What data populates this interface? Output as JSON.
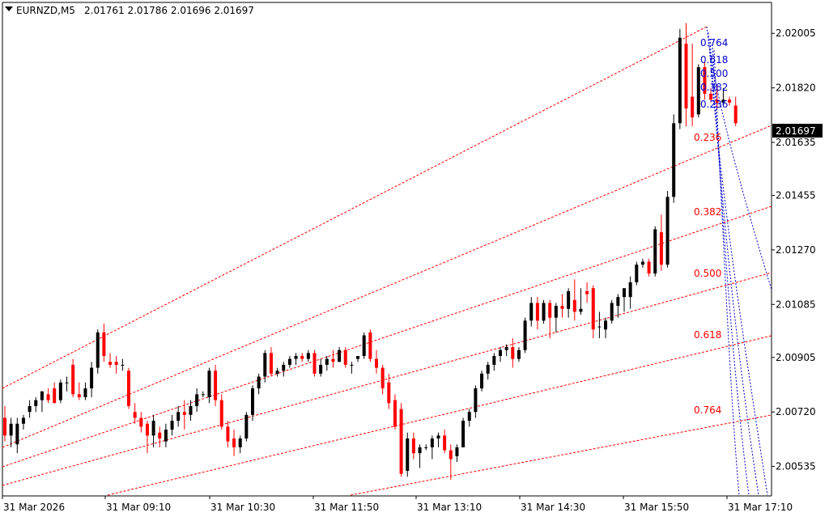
{
  "header": {
    "symbol": "EURNZD,M5",
    "ohlc": "2.01761 2.01786 2.01696 2.01697"
  },
  "colors": {
    "background": "#ffffff",
    "bull_body": "#000000",
    "bear_body": "#ff0000",
    "doji": "#00c000",
    "fan_lines": "#ff0000",
    "fib_lines": "#0000cc",
    "price_tag_bg": "#000000"
  },
  "chart_data": {
    "type": "candlestick",
    "symbol": "EURNZD",
    "timeframe": "M5",
    "ylim": [
      2.00435,
      2.0211
    ],
    "y_ticks": [
      "2.02005",
      "2.01820",
      "2.01635",
      "2.01455",
      "2.01270",
      "2.01085",
      "2.00905",
      "2.00720",
      "2.00535"
    ],
    "x_ticks": [
      "31 Mar 2026",
      "31 Mar 09:10",
      "31 Mar 10:30",
      "31 Mar 11:50",
      "31 Mar 13:10",
      "31 Mar 14:30",
      "31 Mar 15:50",
      "31 Mar 17:10"
    ],
    "current_price": "2.01697",
    "gann_fan_labels": [
      "0.236",
      "0.382",
      "0.500",
      "0.618",
      "0.764"
    ],
    "fib_fan_labels": [
      "0.764",
      "0.618",
      "0.500",
      "0.382",
      "0.236"
    ],
    "candles": [
      [
        2.007,
        2.0074,
        2.0062,
        2.0064
      ],
      [
        2.0064,
        2.007,
        2.006,
        2.0068
      ],
      [
        2.0061,
        2.007,
        2.0058,
        2.0068
      ],
      [
        2.0068,
        2.0071,
        2.0066,
        2.007
      ],
      [
        2.0072,
        2.0076,
        2.007,
        2.0074
      ],
      [
        2.0074,
        2.0077,
        2.0072,
        2.0076
      ],
      [
        2.0076,
        2.0079,
        2.0072,
        2.0079
      ],
      [
        2.0078,
        2.008,
        2.0075,
        2.0076
      ],
      [
        2.008,
        2.0082,
        2.0075,
        2.0075
      ],
      [
        2.0076,
        2.0083,
        2.0075,
        2.0082
      ],
      [
        2.0082,
        2.0084,
        2.0079,
        2.0082
      ],
      [
        2.0088,
        2.009,
        2.0077,
        2.0078
      ],
      [
        2.0078,
        2.0082,
        2.0076,
        2.0077
      ],
      [
        2.0077,
        2.0082,
        2.0076,
        2.008
      ],
      [
        2.008,
        2.0089,
        2.0077,
        2.0087
      ],
      [
        2.0087,
        2.01,
        2.0085,
        2.0099
      ],
      [
        2.0099,
        2.0102,
        2.0089,
        2.0091
      ],
      [
        2.0089,
        2.0092,
        2.0087,
        2.0088
      ],
      [
        2.0089,
        2.0091,
        2.0085,
        2.0088
      ],
      [
        2.0088,
        2.009,
        2.0086,
        2.0088
      ],
      [
        2.0086,
        2.0087,
        2.0073,
        2.0074
      ],
      [
        2.0072,
        2.0075,
        2.0068,
        2.007
      ],
      [
        2.007,
        2.0072,
        2.0065,
        2.0067
      ],
      [
        2.0068,
        2.0069,
        2.0058,
        2.0064
      ],
      [
        2.0064,
        2.0071,
        2.006,
        2.0069
      ],
      [
        2.0065,
        2.0067,
        2.006,
        2.0063
      ],
      [
        2.0062,
        2.0068,
        2.006,
        2.0066
      ],
      [
        2.0066,
        2.0071,
        2.0064,
        2.0069
      ],
      [
        2.0069,
        2.0074,
        2.0067,
        2.0072
      ],
      [
        2.0072,
        2.0076,
        2.0066,
        2.0071
      ],
      [
        2.0071,
        2.0076,
        2.0069,
        2.0074
      ],
      [
        2.0074,
        2.008,
        2.0072,
        2.0078
      ],
      [
        2.0078,
        2.0079,
        2.0077,
        2.0078
      ],
      [
        2.0077,
        2.0087,
        2.0075,
        2.0086
      ],
      [
        2.0086,
        2.0088,
        2.0074,
        2.0076
      ],
      [
        2.0076,
        2.0078,
        2.0066,
        2.0067
      ],
      [
        2.0067,
        2.0069,
        2.006,
        2.0062
      ],
      [
        2.0063,
        2.0066,
        2.0057,
        2.006
      ],
      [
        2.006,
        2.0064,
        2.0058,
        2.0063
      ],
      [
        2.0063,
        2.0072,
        2.0062,
        2.0071
      ],
      [
        2.0071,
        2.0081,
        2.0069,
        2.008
      ],
      [
        2.008,
        2.0085,
        2.0078,
        2.0084
      ],
      [
        2.0084,
        2.0093,
        2.0082,
        2.0092
      ],
      [
        2.0092,
        2.0094,
        2.0084,
        2.0085
      ],
      [
        2.0085,
        2.0087,
        2.0084,
        2.0086
      ],
      [
        2.0086,
        2.0089,
        2.0084,
        2.0088
      ],
      [
        2.0088,
        2.0091,
        2.0087,
        2.009
      ],
      [
        2.009,
        2.0092,
        2.0088,
        2.0091
      ],
      [
        2.0091,
        2.0092,
        2.0089,
        2.009
      ],
      [
        2.009,
        2.0093,
        2.0089,
        2.0092
      ],
      [
        2.0092,
        2.0093,
        2.0084,
        2.0085
      ],
      [
        2.0085,
        2.009,
        2.0084,
        2.0088
      ],
      [
        2.0088,
        2.0091,
        2.0086,
        2.009
      ],
      [
        2.009,
        2.0093,
        2.0087,
        2.0089
      ],
      [
        2.0089,
        2.0094,
        2.0089,
        2.0093
      ],
      [
        2.0093,
        2.0094,
        2.0087,
        2.0088
      ],
      [
        2.0088,
        2.0089,
        2.0085,
        2.0088
      ],
      [
        2.009,
        2.0091,
        2.0089,
        2.0091
      ],
      [
        2.0091,
        2.0099,
        2.009,
        2.0098
      ],
      [
        2.0099,
        2.01,
        2.0089,
        2.009
      ],
      [
        2.009,
        2.0093,
        2.0085,
        2.0087
      ],
      [
        2.0087,
        2.0088,
        2.0078,
        2.008
      ],
      [
        2.0082,
        2.0085,
        2.0073,
        2.0075
      ],
      [
        2.0076,
        2.0078,
        2.0066,
        2.0067
      ],
      [
        2.0073,
        2.0075,
        2.005,
        2.0051
      ],
      [
        2.0052,
        2.0065,
        2.005,
        2.0063
      ],
      [
        2.0063,
        2.0065,
        2.0056,
        2.0058
      ],
      [
        2.0058,
        2.0061,
        2.0053,
        2.006
      ],
      [
        2.006,
        2.0061,
        2.0059,
        2.006
      ],
      [
        2.006,
        2.0064,
        2.0056,
        2.0063
      ],
      [
        2.0063,
        2.0065,
        2.006,
        2.0064
      ],
      [
        2.0064,
        2.0066,
        2.0058,
        2.0059
      ],
      [
        2.0059,
        2.0061,
        2.0049,
        2.0056
      ],
      [
        2.0057,
        2.0061,
        2.0055,
        2.006
      ],
      [
        2.006,
        2.007,
        2.006,
        2.0069
      ],
      [
        2.0069,
        2.0073,
        2.0067,
        2.0072
      ],
      [
        2.0072,
        2.0081,
        2.007,
        2.008
      ],
      [
        2.008,
        2.0086,
        2.0079,
        2.0085
      ],
      [
        2.0085,
        2.0089,
        2.0083,
        2.0088
      ],
      [
        2.0088,
        2.0092,
        2.0086,
        2.0091
      ],
      [
        2.0091,
        2.0094,
        2.0089,
        2.0093
      ],
      [
        2.0093,
        2.0095,
        2.0091,
        2.0094
      ],
      [
        2.0094,
        2.0097,
        2.0087,
        2.009
      ],
      [
        2.009,
        2.0094,
        2.0089,
        2.0093
      ],
      [
        2.0093,
        2.0104,
        2.0092,
        2.0103
      ],
      [
        2.0103,
        2.0111,
        2.0101,
        2.0109
      ],
      [
        2.0109,
        2.0111,
        2.01,
        2.0103
      ],
      [
        2.0103,
        2.011,
        2.0102,
        2.0109
      ],
      [
        2.0109,
        2.011,
        2.0097,
        2.0104
      ],
      [
        2.0104,
        2.0109,
        2.0099,
        2.0108
      ],
      [
        2.0108,
        2.0112,
        2.0104,
        2.0107
      ],
      [
        2.0107,
        2.0114,
        2.0104,
        2.0113
      ],
      [
        2.011,
        2.0117,
        2.0103,
        2.0106
      ],
      [
        2.0106,
        2.0114,
        2.0105,
        2.0107
      ],
      [
        2.0113,
        2.0116,
        2.0109,
        2.0112
      ],
      [
        2.0114,
        2.0115,
        2.0097,
        2.01
      ],
      [
        2.0101,
        2.0106,
        2.0097,
        2.0101
      ],
      [
        2.01,
        2.0104,
        2.0097,
        2.0103
      ],
      [
        2.0103,
        2.011,
        2.0102,
        2.0109
      ],
      [
        2.0108,
        2.0112,
        2.0104,
        2.0111
      ],
      [
        2.0111,
        2.0114,
        2.0106,
        2.0114
      ],
      [
        2.0111,
        2.0118,
        2.0107,
        2.0116
      ],
      [
        2.0116,
        2.0123,
        2.0115,
        2.0122
      ],
      [
        2.0122,
        2.0124,
        2.0121,
        2.0123
      ],
      [
        2.0123,
        2.0124,
        2.0118,
        2.0119
      ],
      [
        2.0119,
        2.0135,
        2.0118,
        2.0134
      ],
      [
        2.0133,
        2.0139,
        2.012,
        2.0122
      ],
      [
        2.0122,
        2.0147,
        2.0121,
        2.0145
      ],
      [
        2.0145,
        2.0173,
        2.0143,
        2.017
      ],
      [
        2.017,
        2.0202,
        2.0168,
        2.0199
      ],
      [
        2.0197,
        2.0204,
        2.0169,
        2.0175
      ],
      [
        2.0179,
        2.0197,
        2.0169,
        2.0172
      ],
      [
        2.0173,
        2.019,
        2.0172,
        2.0189
      ],
      [
        2.0189,
        2.0191,
        2.0178,
        2.018
      ],
      [
        2.018,
        2.0182,
        2.0177,
        2.0178
      ],
      [
        2.0178,
        2.0183,
        2.0175,
        2.0177
      ],
      [
        2.0177,
        2.0182,
        2.0176,
        2.0178
      ],
      [
        2.0178,
        2.0179,
        2.0176,
        2.0177
      ],
      [
        2.0176,
        2.0179,
        2.0169,
        2.017
      ]
    ]
  }
}
